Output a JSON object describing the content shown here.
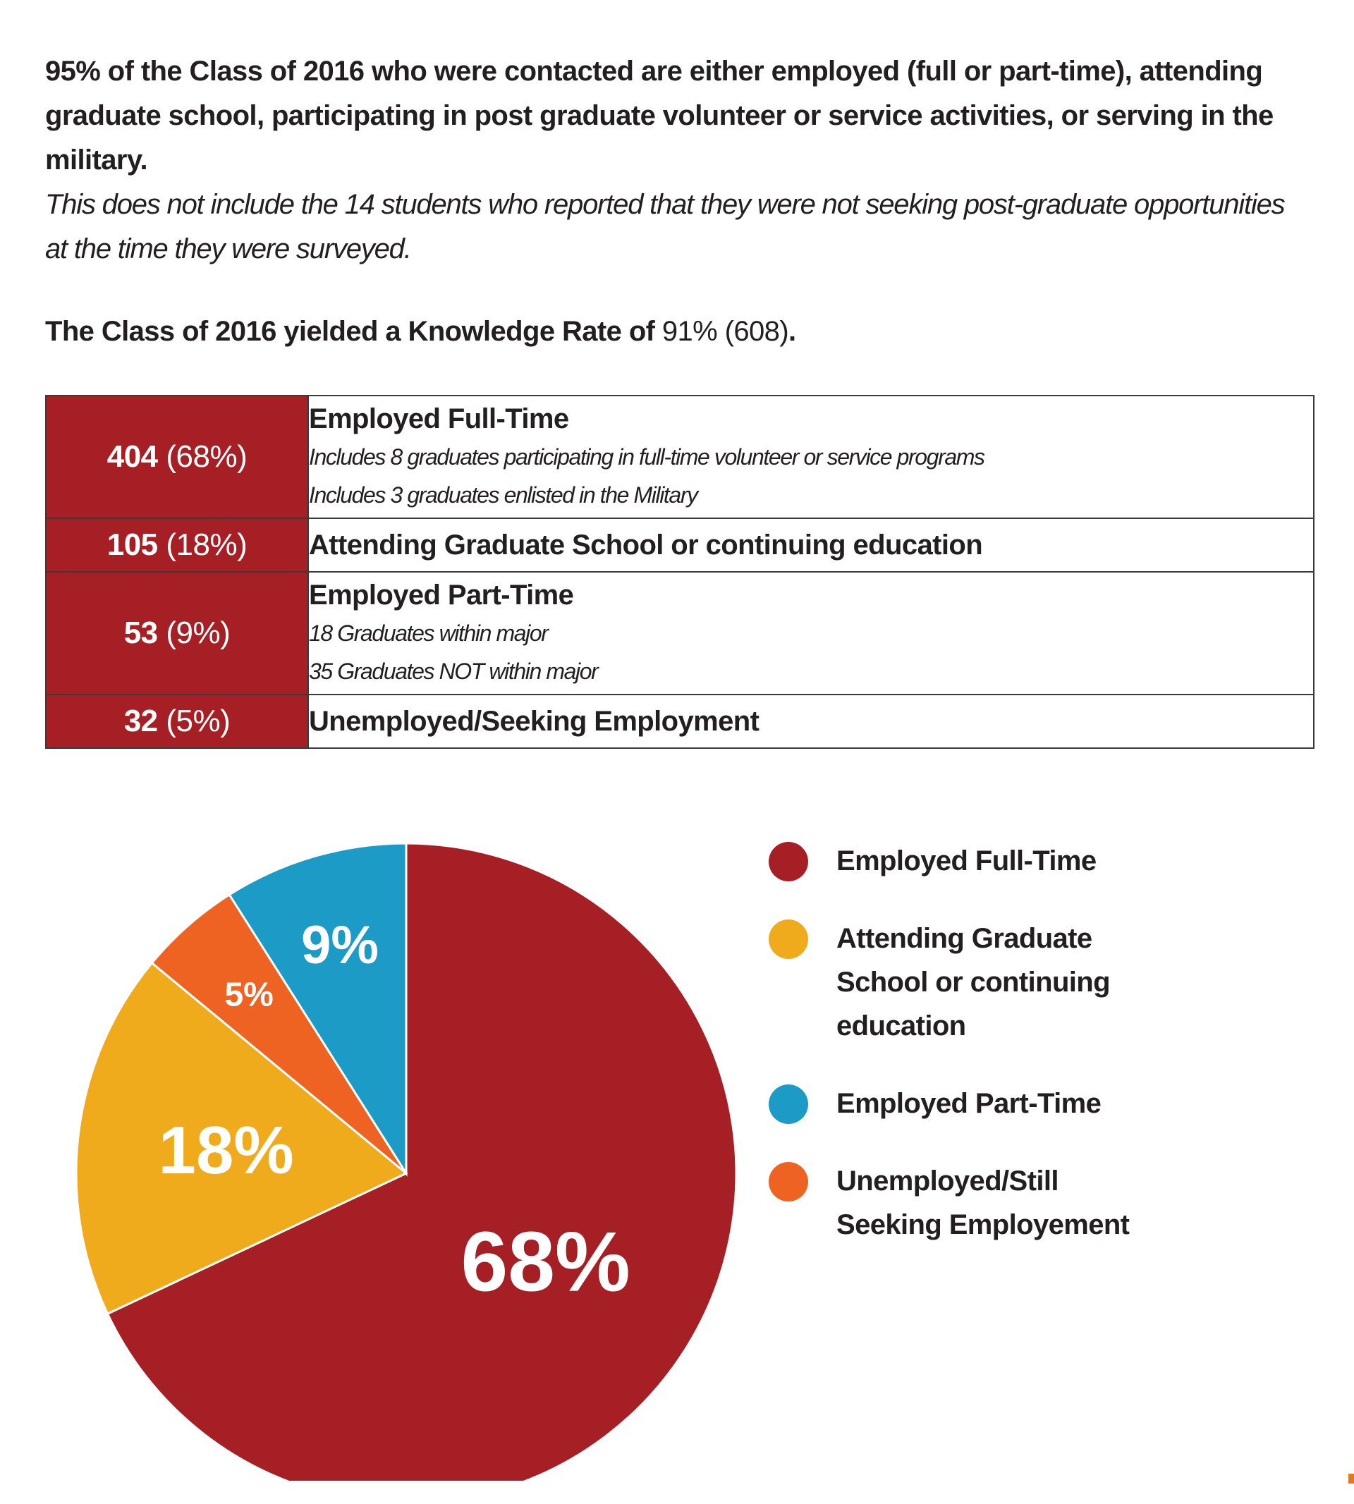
{
  "intro": {
    "headline": "95% of the Class of 2016 who were contacted are either employed (full or part-time), attending graduate school, participating in post graduate volunteer or service activities, or serving in the military.",
    "note": "This does not include the 14 students who reported that they were not seeking post-graduate opportunities at the time they were surveyed."
  },
  "knowledge": {
    "prefix": "The Class of 2016 yielded a Knowledge Rate of ",
    "rate": "91% (608)",
    "suffix": "."
  },
  "table": {
    "rows": [
      {
        "count": "404",
        "pct": "(68%)",
        "title": "Employed Full-Time",
        "sub1": "Includes 8 graduates participating in full-time volunteer or service programs",
        "sub2": "Includes 3 graduates enlisted in the Military"
      },
      {
        "count": "105",
        "pct": "(18%)",
        "title": "Attending Graduate School or continuing education"
      },
      {
        "count": "53",
        "pct": "(9%)",
        "title": "Employed Part-Time",
        "sub1": "18 Graduates within major",
        "sub2": "35 Graduates NOT within major"
      },
      {
        "count": "32",
        "pct": "(5%)",
        "title": "Unemployed/Seeking Employment"
      }
    ]
  },
  "chart_data": {
    "type": "pie",
    "title": "",
    "start_angle_deg": 0,
    "direction": "clockwise",
    "slices": [
      {
        "name": "Employed Full-Time",
        "value": 68,
        "label": "68%",
        "color": "#a61f24"
      },
      {
        "name": "Attending Graduate School or continuing education",
        "value": 18,
        "label": "18%",
        "color": "#f0ab1d"
      },
      {
        "name": "Unemployed/Still Seeking Employement",
        "value": 5,
        "label": "5%",
        "color": "#ef6322"
      },
      {
        "name": "Employed Part-Time",
        "value": 9,
        "label": "9%",
        "color": "#1d9bc7"
      }
    ],
    "legend": [
      {
        "line1": "Employed Full-Time",
        "line2": "",
        "line3": "",
        "color": "#a61f24"
      },
      {
        "line1": "Attending Graduate",
        "line2": "School or continuing",
        "line3": "education",
        "color": "#f0ab1d"
      },
      {
        "line1": "Employed Part-Time",
        "line2": "",
        "line3": "",
        "color": "#1d9bc7"
      },
      {
        "line1": "Unemployed/Still",
        "line2": "Seeking Employement",
        "line3": "",
        "color": "#ef6322"
      }
    ]
  }
}
